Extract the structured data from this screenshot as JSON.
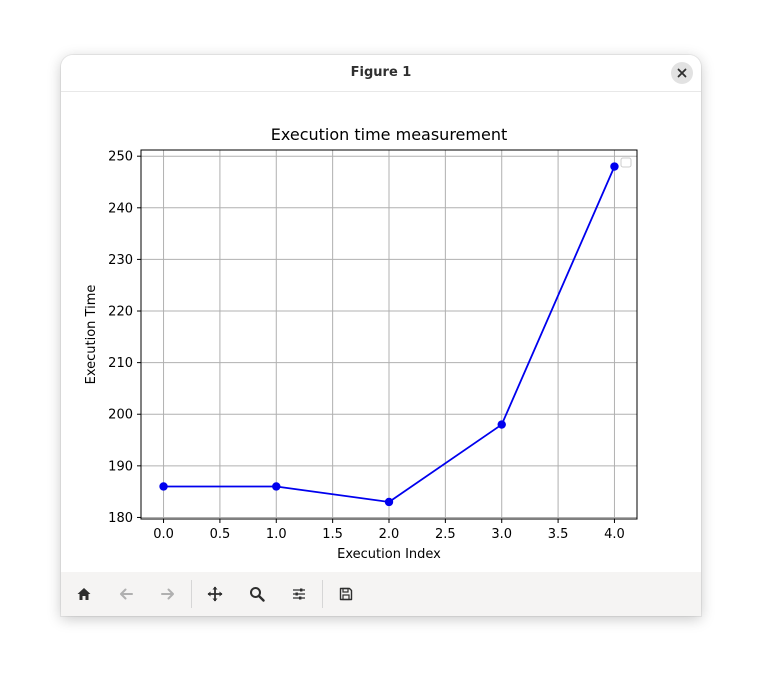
{
  "window": {
    "title": "Figure 1"
  },
  "toolbar": {
    "buttons": [
      {
        "name": "home-icon",
        "enabled": true
      },
      {
        "name": "back-arrow-icon",
        "enabled": false
      },
      {
        "name": "forward-arrow-icon",
        "enabled": false
      },
      {
        "name": "pan-icon",
        "enabled": true
      },
      {
        "name": "zoom-icon",
        "enabled": true
      },
      {
        "name": "configure-subplots-icon",
        "enabled": true
      },
      {
        "name": "save-icon",
        "enabled": true
      }
    ]
  },
  "chart_data": {
    "type": "line",
    "title": "Execution time measurement",
    "xlabel": "Execution Index",
    "ylabel": "Execution Time",
    "x": [
      0,
      1,
      2,
      3,
      4
    ],
    "series": [
      {
        "values": [
          186,
          186,
          183,
          198,
          248
        ],
        "color": "#0000ee",
        "marker": "circle"
      }
    ],
    "xlim": [
      -0.2,
      4.2
    ],
    "ylim": [
      179.7,
      251.2
    ],
    "xticks": [
      0.0,
      0.5,
      1.0,
      1.5,
      2.0,
      2.5,
      3.0,
      3.5,
      4.0
    ],
    "xtick_labels": [
      "0.0",
      "0.5",
      "1.0",
      "1.5",
      "2.0",
      "2.5",
      "3.0",
      "3.5",
      "4.0"
    ],
    "yticks": [
      180,
      190,
      200,
      210,
      220,
      230,
      240,
      250
    ],
    "ytick_labels": [
      "180",
      "190",
      "200",
      "210",
      "220",
      "230",
      "240",
      "250"
    ],
    "grid": true,
    "legend": "top-right"
  }
}
